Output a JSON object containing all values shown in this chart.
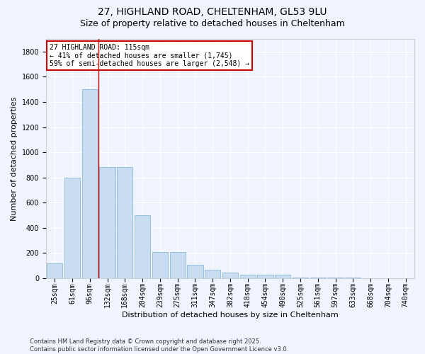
{
  "title_line1": "27, HIGHLAND ROAD, CHELTENHAM, GL53 9LU",
  "title_line2": "Size of property relative to detached houses in Cheltenham",
  "xlabel": "Distribution of detached houses by size in Cheltenham",
  "ylabel": "Number of detached properties",
  "bar_color": "#c8ddf0",
  "bar_edge_color": "#7bafd4",
  "categories": [
    "25sqm",
    "61sqm",
    "96sqm",
    "132sqm",
    "168sqm",
    "204sqm",
    "239sqm",
    "275sqm",
    "311sqm",
    "347sqm",
    "382sqm",
    "418sqm",
    "454sqm",
    "490sqm",
    "525sqm",
    "561sqm",
    "597sqm",
    "633sqm",
    "668sqm",
    "704sqm",
    "740sqm"
  ],
  "values": [
    120,
    800,
    1500,
    880,
    880,
    500,
    210,
    210,
    105,
    65,
    45,
    30,
    25,
    25,
    5,
    5,
    3,
    3,
    2,
    2,
    2
  ],
  "ylim": [
    0,
    1900
  ],
  "yticks": [
    0,
    200,
    400,
    600,
    800,
    1000,
    1200,
    1400,
    1600,
    1800
  ],
  "vline_x": 2.5,
  "vline_color": "#cc0000",
  "annotation_text": "27 HIGHLAND ROAD: 115sqm\n← 41% of detached houses are smaller (1,745)\n59% of semi-detached houses are larger (2,548) →",
  "box_color": "#ffffff",
  "box_edge_color": "#cc0000",
  "footer_text": "Contains HM Land Registry data © Crown copyright and database right 2025.\nContains public sector information licensed under the Open Government Licence v3.0.",
  "bg_color": "#f0f4ff",
  "grid_color": "#ffffff",
  "title_fontsize": 10,
  "subtitle_fontsize": 9,
  "tick_fontsize": 7,
  "label_fontsize": 8,
  "annot_fontsize": 7,
  "footer_fontsize": 6
}
